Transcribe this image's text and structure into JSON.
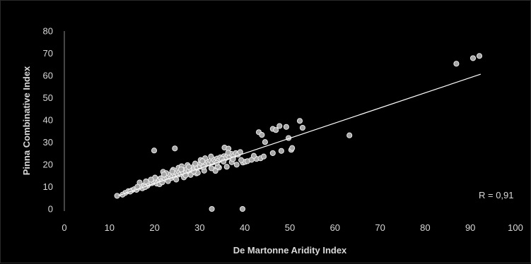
{
  "chart_data": {
    "type": "scatter",
    "xlabel": "De Martonne Aridity Index",
    "ylabel": "Pinna Combinative Index",
    "xlim": [
      0,
      100
    ],
    "ylim": [
      0,
      80
    ],
    "xticks": [
      "0",
      "10",
      "20",
      "30",
      "40",
      "50",
      "60",
      "70",
      "80",
      "90",
      "100"
    ],
    "yticks": [
      "0",
      "10",
      "20",
      "30",
      "40",
      "50",
      "60",
      "70",
      "80"
    ],
    "grid": false,
    "annotation": "R = 0,91",
    "trendline": {
      "x": [
        12,
        92.3
      ],
      "y": [
        6.0,
        60.6
      ]
    },
    "colors": {
      "background": "#000000",
      "marker_fill": "#a6a6a6",
      "marker_stroke": "#f2f2f2",
      "trendline": "#ffffff",
      "axis": "#8c8c8c",
      "text": "#d9d9d9"
    },
    "points": [
      [
        11.7,
        5.9
      ],
      [
        13.5,
        7.2
      ],
      [
        14.2,
        8.0
      ],
      [
        15.0,
        8.4
      ],
      [
        15.5,
        8.9
      ],
      [
        16.0,
        8.6
      ],
      [
        16.6,
        9.6
      ],
      [
        17.0,
        10.1
      ],
      [
        17.3,
        9.3
      ],
      [
        17.7,
        10.6
      ],
      [
        18.0,
        11.0
      ],
      [
        18.4,
        10.4
      ],
      [
        18.8,
        11.3
      ],
      [
        19.1,
        12.0
      ],
      [
        19.4,
        11.6
      ],
      [
        19.8,
        12.4
      ],
      [
        20.1,
        13.0
      ],
      [
        20.3,
        12.2
      ],
      [
        20.7,
        13.3
      ],
      [
        21.0,
        12.8
      ],
      [
        21.4,
        13.8
      ],
      [
        21.6,
        12.6
      ],
      [
        22.0,
        14.2
      ],
      [
        22.3,
        13.4
      ],
      [
        22.6,
        15.0
      ],
      [
        22.8,
        14.0
      ],
      [
        23.1,
        14.6
      ],
      [
        23.5,
        15.3
      ],
      [
        23.7,
        13.9
      ],
      [
        24.0,
        14.9
      ],
      [
        24.3,
        15.8
      ],
      [
        24.5,
        14.4
      ],
      [
        24.9,
        16.1
      ],
      [
        25.2,
        15.4
      ],
      [
        25.5,
        16.6
      ],
      [
        25.8,
        15.7
      ],
      [
        26.1,
        17.0
      ],
      [
        26.4,
        16.2
      ],
      [
        26.7,
        17.5
      ],
      [
        27.0,
        16.7
      ],
      [
        27.2,
        17.9
      ],
      [
        27.6,
        17.2
      ],
      [
        27.9,
        18.4
      ],
      [
        28.2,
        17.7
      ],
      [
        28.5,
        18.8
      ],
      [
        28.8,
        18.1
      ],
      [
        29.1,
        19.4
      ],
      [
        29.5,
        18.6
      ],
      [
        29.8,
        19.9
      ],
      [
        30.1,
        19.0
      ],
      [
        30.4,
        20.3
      ],
      [
        30.8,
        19.6
      ],
      [
        31.1,
        20.8
      ],
      [
        31.4,
        20.1
      ],
      [
        31.8,
        21.2
      ],
      [
        32.1,
        20.4
      ],
      [
        32.4,
        21.7
      ],
      [
        32.8,
        20.9
      ],
      [
        33.1,
        22.3
      ],
      [
        33.5,
        21.4
      ],
      [
        33.9,
        22.7
      ],
      [
        34.2,
        21.8
      ],
      [
        34.6,
        23.2
      ],
      [
        35.0,
        22.4
      ],
      [
        35.4,
        23.7
      ],
      [
        35.8,
        22.9
      ],
      [
        36.2,
        24.2
      ],
      [
        36.6,
        23.3
      ],
      [
        37.0,
        24.8
      ],
      [
        37.5,
        23.8
      ],
      [
        38.0,
        25.1
      ],
      [
        38.5,
        24.4
      ],
      [
        39.0,
        25.6
      ],
      [
        39.6,
        20.9
      ],
      [
        40.1,
        21.2
      ],
      [
        16.7,
        11.9
      ],
      [
        18.1,
        12.4
      ],
      [
        21.9,
        16.7
      ],
      [
        22.6,
        16.1
      ],
      [
        24.1,
        17.6
      ],
      [
        25.3,
        18.5
      ],
      [
        26.0,
        19.2
      ],
      [
        27.3,
        19.7
      ],
      [
        28.4,
        16.4
      ],
      [
        29.3,
        16.0
      ],
      [
        30.2,
        22.0
      ],
      [
        31.2,
        22.8
      ],
      [
        32.5,
        23.6
      ],
      [
        33.4,
        17.8
      ],
      [
        34.3,
        18.6
      ],
      [
        35.5,
        27.6
      ],
      [
        36.4,
        27.1
      ],
      [
        36.3,
        25.3
      ],
      [
        37.1,
        21.0
      ],
      [
        38.2,
        19.9
      ],
      [
        19.9,
        26.3
      ],
      [
        24.5,
        27.2
      ],
      [
        34.9,
        22.5
      ],
      [
        36.0,
        19.0
      ],
      [
        33.5,
        17.1
      ],
      [
        42.6,
        22.5
      ],
      [
        43.5,
        22.8
      ],
      [
        44.2,
        23.6
      ],
      [
        43.1,
        34.5
      ],
      [
        43.8,
        33.3
      ],
      [
        46.2,
        36.0
      ],
      [
        46.9,
        35.5
      ],
      [
        47.7,
        37.3
      ],
      [
        49.2,
        36.9
      ],
      [
        48.1,
        26.1
      ],
      [
        50.3,
        26.6
      ],
      [
        50.5,
        27.4
      ],
      [
        49.7,
        31.9
      ],
      [
        52.2,
        39.6
      ],
      [
        52.8,
        36.5
      ],
      [
        46.2,
        25.1
      ],
      [
        44.5,
        30.1
      ],
      [
        63.2,
        33.1
      ],
      [
        86.9,
        65.3
      ],
      [
        90.6,
        67.8
      ],
      [
        92.0,
        68.8
      ],
      [
        32.7,
        0.0
      ],
      [
        39.5,
        0.0
      ],
      [
        12.9,
        6.4
      ],
      [
        14.6,
        7.8
      ],
      [
        17.9,
        9.8
      ],
      [
        20.5,
        11.4
      ],
      [
        21.1,
        11.1
      ],
      [
        23.0,
        12.5
      ],
      [
        24.8,
        13.2
      ],
      [
        26.5,
        14.2
      ],
      [
        28.0,
        15.3
      ],
      [
        29.6,
        16.3
      ],
      [
        31.0,
        17.2
      ],
      [
        32.6,
        18.3
      ],
      [
        34.0,
        19.1
      ],
      [
        20.1,
        14.1
      ],
      [
        22.1,
        15.5
      ],
      [
        23.9,
        16.9
      ],
      [
        25.9,
        17.8
      ],
      [
        27.6,
        18.9
      ],
      [
        29.0,
        20.4
      ],
      [
        30.6,
        21.5
      ],
      [
        16.2,
        10.0
      ],
      [
        19.2,
        13.2
      ],
      [
        21.7,
        12.0
      ],
      [
        26.9,
        15.1
      ],
      [
        28.7,
        16.9
      ],
      [
        30.9,
        18.9
      ],
      [
        33.8,
        20.7
      ],
      [
        35.3,
        21.3
      ],
      [
        37.4,
        22.4
      ],
      [
        39.2,
        22.0
      ],
      [
        40.6,
        21.5
      ],
      [
        41.5,
        22.1
      ],
      [
        42.0,
        23.9
      ]
    ]
  }
}
